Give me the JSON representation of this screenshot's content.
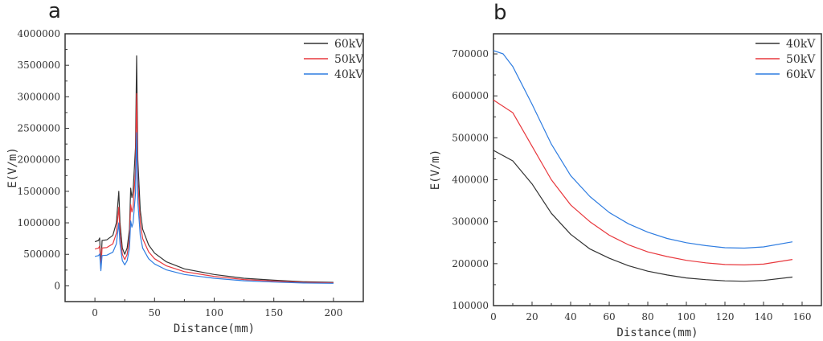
{
  "chart_data": [
    {
      "panel_label": "a",
      "type": "line",
      "xlabel": "Distance(mm)",
      "ylabel": "E(V/m)",
      "xlim": [
        -25,
        225
      ],
      "ylim": [
        -250000,
        4000000
      ],
      "xticks": [
        0,
        50,
        100,
        150,
        200
      ],
      "yticks": [
        0,
        500000,
        1000000,
        1500000,
        2000000,
        2500000,
        3000000,
        3500000,
        4000000
      ],
      "grid": false,
      "legend": "top-right",
      "series": [
        {
          "name": "60kV",
          "color": "#333333",
          "x": [
            0,
            3,
            4,
            5,
            6,
            10,
            15,
            18,
            20,
            21,
            23,
            25,
            27,
            29,
            30,
            31,
            32,
            34,
            35,
            36,
            38,
            40,
            45,
            50,
            60,
            75,
            100,
            125,
            150,
            175,
            200
          ],
          "y": [
            700000,
            720000,
            760000,
            300000,
            720000,
            730000,
            800000,
            1000000,
            1500000,
            1000000,
            600000,
            500000,
            600000,
            900000,
            1550000,
            1400000,
            1500000,
            2200000,
            3650000,
            2000000,
            1200000,
            900000,
            650000,
            520000,
            380000,
            270000,
            180000,
            120000,
            90000,
            65000,
            55000
          ]
        },
        {
          "name": "50kV",
          "color": "#e8383d",
          "x": [
            0,
            3,
            4,
            5,
            6,
            10,
            15,
            18,
            20,
            21,
            23,
            25,
            27,
            29,
            30,
            31,
            32,
            34,
            35,
            36,
            38,
            40,
            45,
            50,
            60,
            75,
            100,
            125,
            150,
            175,
            200
          ],
          "y": [
            583000,
            600000,
            630000,
            270000,
            600000,
            608000,
            667000,
            833000,
            1250000,
            833000,
            500000,
            417000,
            500000,
            750000,
            1290000,
            1170000,
            1250000,
            1830000,
            3050000,
            1670000,
            1000000,
            750000,
            540000,
            430000,
            317000,
            225000,
            150000,
            100000,
            75000,
            55000,
            48000
          ]
        },
        {
          "name": "40kV",
          "color": "#2f7de1",
          "x": [
            0,
            3,
            4,
            5,
            6,
            10,
            15,
            18,
            20,
            21,
            23,
            25,
            27,
            29,
            30,
            31,
            32,
            34,
            35,
            36,
            38,
            40,
            45,
            50,
            60,
            75,
            100,
            125,
            150,
            175,
            200
          ],
          "y": [
            467000,
            480000,
            505000,
            240000,
            480000,
            487000,
            533000,
            667000,
            1000000,
            667000,
            400000,
            333000,
            400000,
            600000,
            1030000,
            930000,
            1000000,
            1470000,
            2430000,
            1330000,
            800000,
            600000,
            430000,
            347000,
            253000,
            180000,
            120000,
            80000,
            60000,
            45000,
            40000
          ]
        }
      ]
    },
    {
      "panel_label": "b",
      "type": "line",
      "xlabel": "Distance(mm)",
      "ylabel": "E(V/m)",
      "xlim": [
        0,
        170
      ],
      "ylim": [
        100000,
        748000
      ],
      "xticks": [
        0,
        20,
        40,
        60,
        80,
        100,
        120,
        140,
        160
      ],
      "yticks": [
        100000,
        200000,
        300000,
        400000,
        500000,
        600000,
        700000
      ],
      "grid": false,
      "legend": "top-right",
      "series": [
        {
          "name": "40kV",
          "color": "#333333",
          "x": [
            0,
            10,
            20,
            30,
            40,
            50,
            60,
            70,
            80,
            90,
            100,
            110,
            120,
            130,
            140,
            155
          ],
          "y": [
            470000,
            445000,
            390000,
            320000,
            270000,
            235000,
            213000,
            195000,
            182000,
            173000,
            166000,
            162000,
            159000,
            158000,
            160000,
            168000
          ]
        },
        {
          "name": "50kV",
          "color": "#e8383d",
          "x": [
            0,
            10,
            20,
            30,
            40,
            50,
            60,
            70,
            80,
            90,
            100,
            110,
            120,
            130,
            140,
            155
          ],
          "y": [
            590000,
            560000,
            480000,
            400000,
            340000,
            300000,
            268000,
            245000,
            228000,
            217000,
            208000,
            202000,
            198000,
            197000,
            199000,
            210000
          ]
        },
        {
          "name": "60kV",
          "color": "#2f7de1",
          "x": [
            0,
            5,
            10,
            20,
            30,
            40,
            50,
            60,
            70,
            80,
            90,
            100,
            110,
            120,
            130,
            140,
            155
          ],
          "y": [
            708000,
            700000,
            670000,
            580000,
            485000,
            410000,
            360000,
            322000,
            295000,
            275000,
            260000,
            250000,
            243000,
            238000,
            237000,
            240000,
            252000
          ]
        }
      ]
    }
  ]
}
